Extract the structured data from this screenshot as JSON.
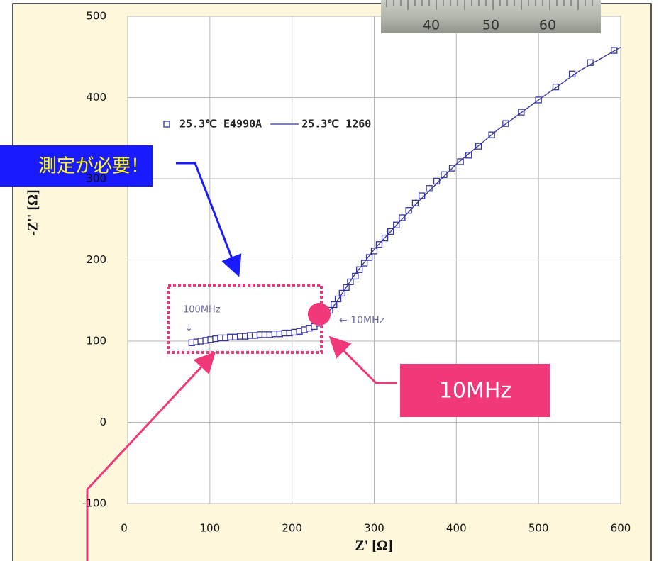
{
  "chart_data": {
    "type": "scatter",
    "xlabel": "Z'  [Ω]",
    "ylabel": "-Z'' [Ω]",
    "xlim": [
      0,
      600
    ],
    "xticks": [
      0,
      100,
      200,
      300,
      400,
      500,
      600
    ],
    "ylim": [
      -100,
      500
    ],
    "yticks": [
      -100,
      0,
      100,
      200,
      300,
      400,
      500
    ],
    "grid": true,
    "series": [
      {
        "name": "25.3℃  E4990A",
        "color": "#333399",
        "marker": "square",
        "x": [
          78,
          84,
          89,
          95,
          101,
          107,
          113,
          119,
          125,
          131,
          137,
          143,
          149,
          155,
          161,
          167,
          173,
          179,
          185,
          191,
          197,
          203,
          209,
          215,
          221,
          227,
          233,
          240,
          246,
          251,
          256,
          261,
          266,
          271,
          277,
          282,
          288,
          294,
          300,
          306,
          313,
          320,
          327,
          334,
          342,
          350,
          358,
          367,
          376,
          385,
          395,
          405,
          415,
          427,
          443,
          460,
          479,
          500,
          521,
          541,
          563,
          592
        ],
        "values": [
          98,
          99,
          100,
          101,
          102,
          103,
          104,
          104,
          105,
          105,
          106,
          106,
          107,
          107,
          108,
          108,
          108,
          109,
          109,
          110,
          110,
          111,
          112,
          114,
          116,
          118,
          122,
          128,
          138,
          145,
          152,
          159,
          166,
          173,
          180,
          188,
          196,
          203,
          211,
          219,
          227,
          235,
          243,
          252,
          261,
          270,
          279,
          288,
          297,
          305,
          313,
          321,
          329,
          340,
          354,
          368,
          382,
          397,
          413,
          429,
          443,
          458
        ]
      },
      {
        "name": "25.3℃  1260",
        "color": "#333399",
        "x": [
          230,
          250,
          275,
          300,
          350,
          400,
          450,
          500,
          550,
          600
        ],
        "values": [
          122,
          142,
          180,
          213,
          268,
          318,
          360,
          397,
          433,
          462
        ]
      }
    ],
    "annotations": [
      "100MHz",
      "↓",
      "← 10MHz",
      "10MHz",
      "測定が必要！"
    ],
    "photo_labels": [
      "40",
      "50",
      "60"
    ]
  }
}
